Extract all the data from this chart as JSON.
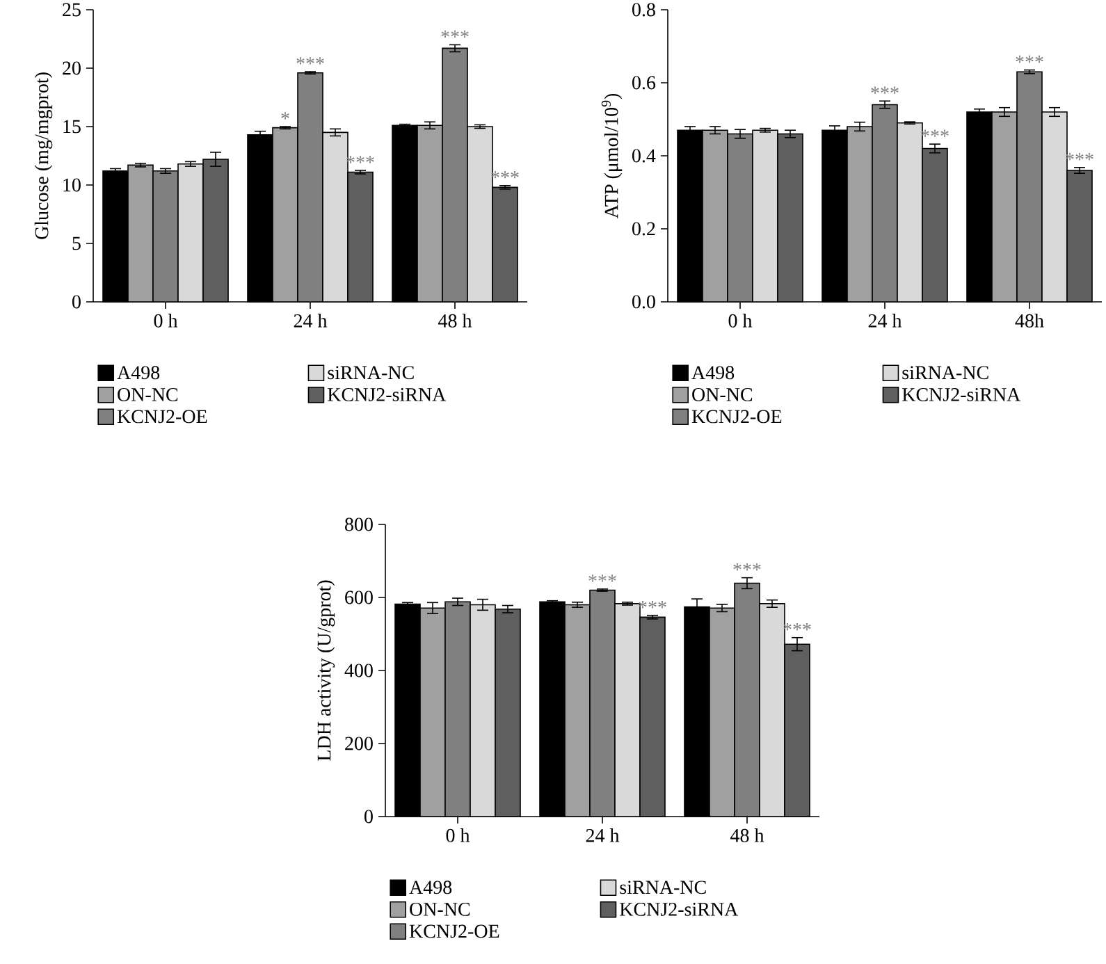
{
  "chart_data": [
    {
      "type": "bar",
      "ylabel": "Glucose (mg/mgprot)",
      "categories": [
        "0 h",
        "24 h",
        "48 h"
      ],
      "ylim": [
        0,
        25
      ],
      "yticks": [
        0,
        5,
        10,
        15,
        20,
        25
      ],
      "legend": "bottom",
      "series": [
        {
          "name": "A498",
          "color": "#000000",
          "values": [
            11.2,
            14.3,
            15.1
          ],
          "errors": [
            0.2,
            0.3,
            0.1
          ]
        },
        {
          "name": "ON-NC",
          "color": "#a0a0a0",
          "values": [
            11.7,
            14.9,
            15.1
          ],
          "errors": [
            0.15,
            0.1,
            0.3
          ],
          "value_labels": [
            null,
            "*",
            null
          ]
        },
        {
          "name": "KCNJ2-OE",
          "color": "#808080",
          "values": [
            11.2,
            19.6,
            21.7
          ],
          "errors": [
            0.2,
            0.1,
            0.3
          ],
          "value_labels": [
            null,
            "***",
            "***"
          ]
        },
        {
          "name": "siRNA-NC",
          "color": "#d9d9d9",
          "values": [
            11.8,
            14.5,
            15.0
          ],
          "errors": [
            0.2,
            0.3,
            0.15
          ]
        },
        {
          "name": "KCNJ2-siRNA",
          "color": "#5f5f5f",
          "values": [
            12.2,
            11.1,
            9.8
          ],
          "errors": [
            0.6,
            0.15,
            0.15
          ],
          "value_labels": [
            null,
            "***",
            "***"
          ]
        }
      ]
    },
    {
      "type": "bar",
      "ylabel": "ATP (μmol/10$^{9}$)",
      "categories": [
        "0 h",
        "24 h",
        "48h"
      ],
      "ylim": [
        0,
        0.8
      ],
      "yticks": [
        {
          "value": 0,
          "label": "0.0"
        },
        0.2,
        0.4,
        0.6,
        0.8
      ],
      "legend": "bottom",
      "series": [
        {
          "name": "A498",
          "color": "#000000",
          "values": [
            0.47,
            0.47,
            0.52
          ],
          "errors": [
            0.01,
            0.012,
            0.008
          ]
        },
        {
          "name": "ON-NC",
          "color": "#a0a0a0",
          "values": [
            0.47,
            0.48,
            0.52
          ],
          "errors": [
            0.01,
            0.012,
            0.012
          ]
        },
        {
          "name": "KCNJ2-OE",
          "color": "#808080",
          "values": [
            0.46,
            0.54,
            0.63
          ],
          "errors": [
            0.012,
            0.01,
            0.005
          ],
          "value_labels": [
            null,
            "***",
            "***"
          ]
        },
        {
          "name": "siRNA-NC",
          "color": "#d9d9d9",
          "values": [
            0.47,
            0.49,
            0.52
          ],
          "errors": [
            0.005,
            0.003,
            0.012
          ]
        },
        {
          "name": "KCNJ2-siRNA",
          "color": "#5f5f5f",
          "values": [
            0.46,
            0.42,
            0.36
          ],
          "errors": [
            0.01,
            0.012,
            0.008
          ],
          "value_labels": [
            null,
            "***",
            "***"
          ]
        }
      ]
    },
    {
      "type": "bar",
      "ylabel": "LDH activity (U/gprot)",
      "categories": [
        "0 h",
        "24 h",
        "48 h"
      ],
      "ylim": [
        0,
        800
      ],
      "yticks": [
        0,
        200,
        400,
        600,
        800
      ],
      "legend": "bottom",
      "series": [
        {
          "name": "A498",
          "color": "#000000",
          "values": [
            582,
            588,
            574
          ],
          "errors": [
            4,
            3,
            22
          ]
        },
        {
          "name": "ON-NC",
          "color": "#a0a0a0",
          "values": [
            571,
            580,
            571
          ],
          "errors": [
            15,
            7,
            10
          ]
        },
        {
          "name": "KCNJ2-OE",
          "color": "#808080",
          "values": [
            588,
            620,
            639
          ],
          "errors": [
            10,
            3,
            15
          ],
          "value_labels": [
            null,
            "***",
            "***"
          ]
        },
        {
          "name": "siRNA-NC",
          "color": "#d9d9d9",
          "values": [
            580,
            583,
            583
          ],
          "errors": [
            15,
            4,
            10
          ]
        },
        {
          "name": "KCNJ2-siRNA",
          "color": "#5f5f5f",
          "values": [
            568,
            546,
            472
          ],
          "errors": [
            10,
            5,
            18
          ],
          "value_labels": [
            null,
            "***",
            "***"
          ]
        }
      ]
    }
  ]
}
